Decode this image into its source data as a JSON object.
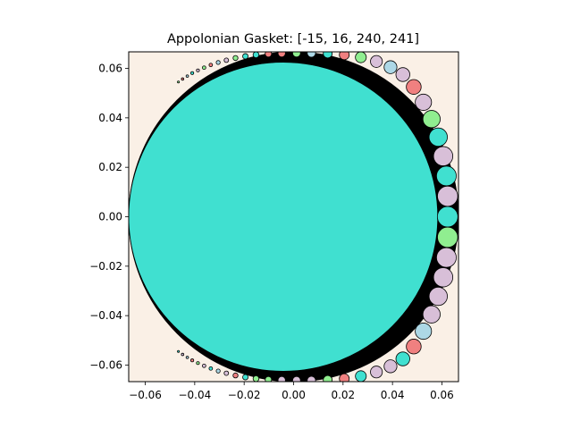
{
  "chart_data": {
    "type": "scatter",
    "title": "Appolonian Gasket: [-15, 16, 240, 241]",
    "xlabel": "",
    "ylabel": "",
    "xlim": [
      -0.0667,
      0.0667
    ],
    "ylim": [
      -0.0667,
      0.0667
    ],
    "x_ticks": [
      -0.06,
      -0.04,
      -0.02,
      0.0,
      0.02,
      0.04,
      0.06
    ],
    "x_tick_labels": [
      "−0.06",
      "−0.04",
      "−0.02",
      "0.00",
      "0.02",
      "0.04",
      "0.06"
    ],
    "y_ticks": [
      -0.06,
      -0.04,
      -0.02,
      0.0,
      0.02,
      0.04,
      0.06
    ],
    "y_tick_labels": [
      "−0.06",
      "−0.04",
      "−0.02",
      "0.00",
      "0.02",
      "0.04",
      "0.06"
    ],
    "grid": false,
    "background_color": "#faf0e6",
    "gasket_fill": "#000000",
    "curvatures": [
      -15,
      16,
      240,
      241
    ],
    "outer_circle": {
      "x": 0.0,
      "y": 0.0,
      "r": 0.0667
    },
    "main_circle": {
      "x": -0.0042,
      "y": 0.0,
      "r": 0.0625,
      "color": "#40e0d0"
    },
    "circles": [
      {
        "x": 0.0623,
        "y": 0.0,
        "r": 0.00415,
        "color": "#40e0d0"
      },
      {
        "x": 0.0623,
        "y": 0.0083,
        "r": 0.0041,
        "color": "#d8bfd8"
      },
      {
        "x": 0.0623,
        "y": -0.0083,
        "r": 0.0041,
        "color": "#90ee90"
      },
      {
        "x": 0.0618,
        "y": 0.0165,
        "r": 0.004,
        "color": "#40e0d0"
      },
      {
        "x": 0.0618,
        "y": -0.0165,
        "r": 0.004,
        "color": "#d8bfd8"
      },
      {
        "x": 0.0605,
        "y": 0.0245,
        "r": 0.0039,
        "color": "#d8bfd8"
      },
      {
        "x": 0.0605,
        "y": -0.0245,
        "r": 0.0039,
        "color": "#d8bfd8"
      },
      {
        "x": 0.0585,
        "y": 0.0322,
        "r": 0.0037,
        "color": "#40e0d0"
      },
      {
        "x": 0.0585,
        "y": -0.0322,
        "r": 0.0037,
        "color": "#d8bfd8"
      },
      {
        "x": 0.0558,
        "y": 0.0395,
        "r": 0.0035,
        "color": "#90ee90"
      },
      {
        "x": 0.0558,
        "y": -0.0395,
        "r": 0.0035,
        "color": "#d8bfd8"
      },
      {
        "x": 0.0525,
        "y": 0.0463,
        "r": 0.0033,
        "color": "#d8bfd8"
      },
      {
        "x": 0.0525,
        "y": -0.0463,
        "r": 0.0033,
        "color": "#add8e6"
      },
      {
        "x": 0.0486,
        "y": 0.0525,
        "r": 0.003,
        "color": "#f08080"
      },
      {
        "x": 0.0486,
        "y": -0.0525,
        "r": 0.003,
        "color": "#f08080"
      },
      {
        "x": 0.0442,
        "y": 0.0575,
        "r": 0.0028,
        "color": "#d8bfd8"
      },
      {
        "x": 0.0442,
        "y": -0.0575,
        "r": 0.0028,
        "color": "#40e0d0"
      },
      {
        "x": 0.0392,
        "y": 0.0605,
        "r": 0.0026,
        "color": "#add8e6"
      },
      {
        "x": 0.0392,
        "y": -0.0605,
        "r": 0.0026,
        "color": "#d8bfd8"
      },
      {
        "x": 0.0335,
        "y": 0.0628,
        "r": 0.0024,
        "color": "#d8bfd8"
      },
      {
        "x": 0.0335,
        "y": -0.0628,
        "r": 0.0024,
        "color": "#d8bfd8"
      },
      {
        "x": 0.0272,
        "y": 0.0645,
        "r": 0.0022,
        "color": "#90ee90"
      },
      {
        "x": 0.0272,
        "y": -0.0645,
        "r": 0.0022,
        "color": "#40e0d0"
      },
      {
        "x": 0.0205,
        "y": 0.0655,
        "r": 0.002,
        "color": "#f08080"
      },
      {
        "x": 0.0205,
        "y": -0.0655,
        "r": 0.002,
        "color": "#f08080"
      },
      {
        "x": 0.0138,
        "y": 0.066,
        "r": 0.0018,
        "color": "#40e0d0"
      },
      {
        "x": 0.0138,
        "y": -0.066,
        "r": 0.0018,
        "color": "#90ee90"
      },
      {
        "x": 0.0072,
        "y": 0.0662,
        "r": 0.0017,
        "color": "#add8e6"
      },
      {
        "x": 0.0072,
        "y": -0.0662,
        "r": 0.0017,
        "color": "#d8bfd8"
      },
      {
        "x": 0.0012,
        "y": 0.0662,
        "r": 0.0016,
        "color": "#90ee90"
      },
      {
        "x": 0.0012,
        "y": -0.0662,
        "r": 0.0016,
        "color": "#d8bfd8"
      },
      {
        "x": -0.0048,
        "y": 0.0661,
        "r": 0.0015,
        "color": "#f08080"
      },
      {
        "x": -0.0048,
        "y": -0.0661,
        "r": 0.0015,
        "color": "#d8bfd8"
      },
      {
        "x": -0.0102,
        "y": 0.0659,
        "r": 0.0013,
        "color": "#f08080"
      },
      {
        "x": -0.0102,
        "y": -0.0659,
        "r": 0.0013,
        "color": "#90ee90"
      },
      {
        "x": -0.0152,
        "y": 0.0655,
        "r": 0.0012,
        "color": "#40e0d0"
      },
      {
        "x": -0.0152,
        "y": -0.0655,
        "r": 0.0012,
        "color": "#90ee90"
      },
      {
        "x": -0.0195,
        "y": 0.0649,
        "r": 0.0011,
        "color": "#40e0d0"
      },
      {
        "x": -0.0195,
        "y": -0.0649,
        "r": 0.0011,
        "color": "#40e0d0"
      },
      {
        "x": -0.0235,
        "y": 0.0642,
        "r": 0.001,
        "color": "#90ee90"
      },
      {
        "x": -0.0235,
        "y": -0.0642,
        "r": 0.001,
        "color": "#f08080"
      },
      {
        "x": -0.0272,
        "y": 0.0633,
        "r": 0.0009,
        "color": "#d8bfd8"
      },
      {
        "x": -0.0272,
        "y": -0.0633,
        "r": 0.0009,
        "color": "#d8bfd8"
      },
      {
        "x": -0.0305,
        "y": 0.0624,
        "r": 0.0008,
        "color": "#add8e6"
      },
      {
        "x": -0.0305,
        "y": -0.0624,
        "r": 0.0008,
        "color": "#add8e6"
      },
      {
        "x": -0.0335,
        "y": 0.0614,
        "r": 0.0007,
        "color": "#f08080"
      },
      {
        "x": -0.0335,
        "y": -0.0614,
        "r": 0.0007,
        "color": "#40e0d0"
      },
      {
        "x": -0.0362,
        "y": 0.0603,
        "r": 0.0007,
        "color": "#90ee90"
      },
      {
        "x": -0.0362,
        "y": -0.0603,
        "r": 0.0007,
        "color": "#d8bfd8"
      },
      {
        "x": -0.0387,
        "y": 0.0592,
        "r": 0.0006,
        "color": "#d8bfd8"
      },
      {
        "x": -0.0387,
        "y": -0.0592,
        "r": 0.0006,
        "color": "#90ee90"
      },
      {
        "x": -0.041,
        "y": 0.0581,
        "r": 0.0006,
        "color": "#40e0d0"
      },
      {
        "x": -0.041,
        "y": -0.0581,
        "r": 0.0006,
        "color": "#f08080"
      },
      {
        "x": -0.043,
        "y": 0.0569,
        "r": 0.0005,
        "color": "#add8e6"
      },
      {
        "x": -0.043,
        "y": -0.0569,
        "r": 0.0005,
        "color": "#add8e6"
      },
      {
        "x": -0.0449,
        "y": 0.0557,
        "r": 0.0005,
        "color": "#f08080"
      },
      {
        "x": -0.0449,
        "y": -0.0557,
        "r": 0.0005,
        "color": "#d8bfd8"
      },
      {
        "x": -0.0466,
        "y": 0.0545,
        "r": 0.0004,
        "color": "#90ee90"
      },
      {
        "x": -0.0466,
        "y": -0.0545,
        "r": 0.0004,
        "color": "#40e0d0"
      }
    ]
  }
}
